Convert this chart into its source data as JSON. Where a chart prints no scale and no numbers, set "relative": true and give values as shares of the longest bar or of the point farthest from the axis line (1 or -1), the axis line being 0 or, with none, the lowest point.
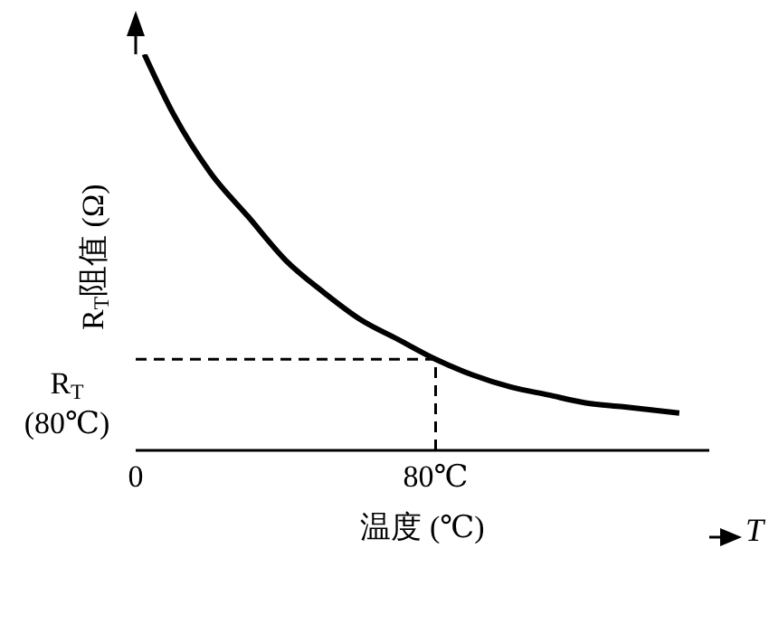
{
  "chart_data": {
    "type": "line",
    "relative": true,
    "xlabel": "温度 (℃)",
    "ylabel": "R$_{T}$阻值 (Ω)",
    "annotations": [
      "T"
    ],
    "x": [
      2.3,
      10,
      20,
      30,
      40,
      50,
      60,
      70,
      80,
      90,
      100,
      110,
      120,
      130,
      145
    ],
    "series": [
      {
        "color": "#000000",
        "values": [
          1.0,
          0.85,
          0.7,
          0.59,
          0.48,
          0.4,
          0.33,
          0.28,
          0.23,
          0.19,
          0.16,
          0.14,
          0.12,
          0.11,
          0.094
        ]
      }
    ],
    "xlim": [
      0,
      153
    ],
    "xticks": [
      0,
      {
        "value": 80,
        "label": "80℃"
      }
    ],
    "ref_lines": [
      {
        "axis": "y",
        "value": 0.23,
        "label": "R$_{T}$ (80℃)",
        "line_style": "dashed",
        "color": "#000000"
      },
      {
        "axis": "x",
        "value": 80,
        "label": null,
        "line_style": "dashed",
        "color": "#000000"
      }
    ],
    "grid": false,
    "legend": false,
    "marker": "none",
    "line_style": "solid"
  }
}
